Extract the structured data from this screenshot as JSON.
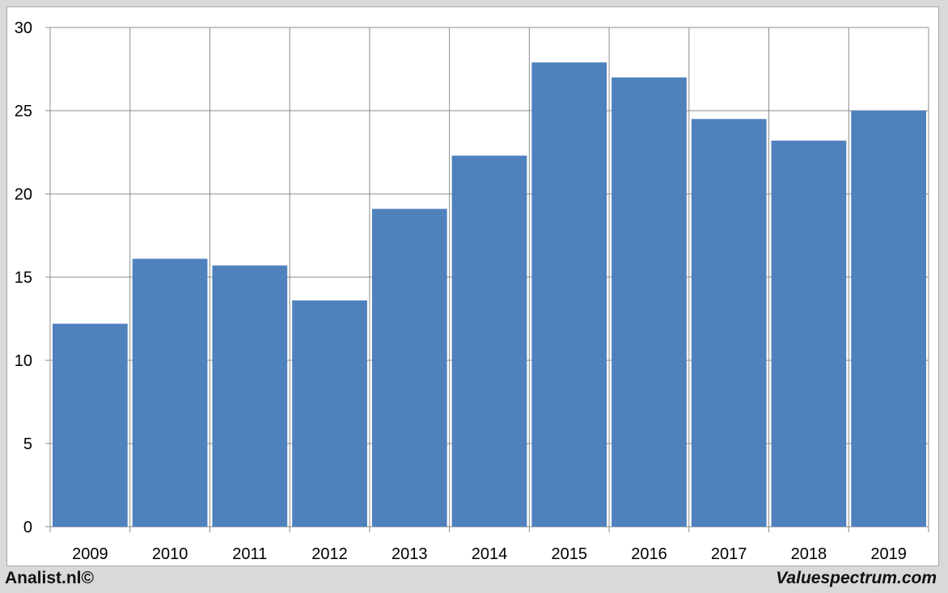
{
  "chart_data": {
    "type": "bar",
    "categories": [
      "2009",
      "2010",
      "2011",
      "2012",
      "2013",
      "2014",
      "2015",
      "2016",
      "2017",
      "2018",
      "2019"
    ],
    "values": [
      12.2,
      16.1,
      15.7,
      13.6,
      19.1,
      22.3,
      27.9,
      27.0,
      24.5,
      23.2,
      25.0
    ],
    "ylim": [
      0,
      30
    ],
    "yticks": [
      0,
      5,
      10,
      15,
      20,
      25,
      30
    ],
    "grid": true,
    "bar_color": "#4f81bd",
    "title": "",
    "xlabel": "",
    "ylabel": ""
  },
  "footer": {
    "left": "Analist.nl©",
    "right": "Valuespectrum.com"
  }
}
